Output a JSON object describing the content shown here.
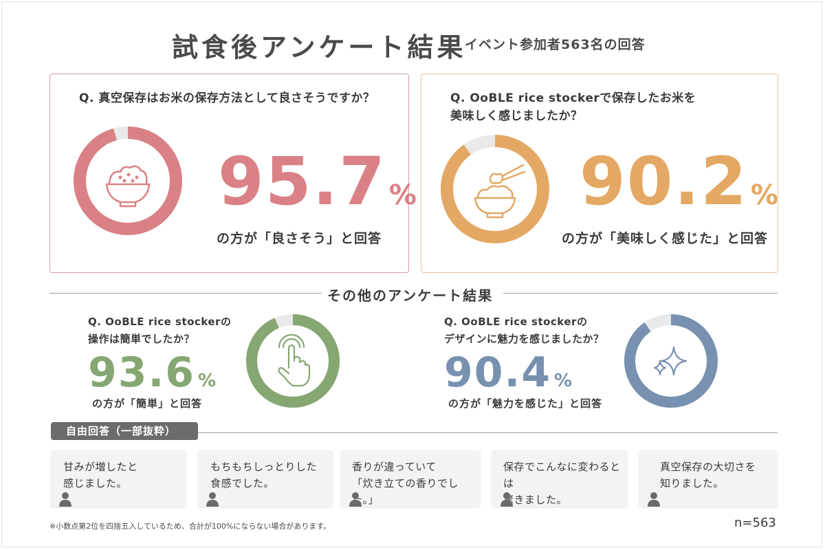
{
  "header": {
    "title": "試食後アンケート結果",
    "subtitle": "イベント参加者563名の回答"
  },
  "main_results": [
    {
      "question": "Q. 真空保存はお米の保存方法として良さそうですか？",
      "value": "95.7",
      "unit": "%",
      "fraction": 0.957,
      "caption": "の方が「良さそう」と回答",
      "color": "#d98186",
      "icon": "rice-bowl-icon"
    },
    {
      "question": "Q. OoBLE rice stockerで保存したお米を\n美味しく感じましたか？",
      "value": "90.2",
      "unit": "%",
      "fraction": 0.902,
      "caption": "の方が「美味しく感じた」と回答",
      "color": "#e3a863",
      "icon": "rice-bowl-chopsticks-icon"
    }
  ],
  "other_section": {
    "title": "その他のアンケート結果"
  },
  "other_results": [
    {
      "question": "Q. OoBLE rice stockerの\n操作は簡単でしたか？",
      "value": "93.6",
      "unit": "%",
      "fraction": 0.936,
      "caption": "の方が「簡単」と回答",
      "color": "#86a672",
      "icon": "tap-hand-icon"
    },
    {
      "question": "Q. OoBLE rice stockerの\nデザインに魅力を感じましたか？",
      "value": "90.4",
      "unit": "%",
      "fraction": 0.904,
      "caption": "の方が「魅力を感じた」と回答",
      "color": "#7891b0",
      "icon": "sparkle-icon"
    }
  ],
  "free_answers": {
    "label": "自由回答（一部抜粋）",
    "items": [
      "甘みが増したと\n感じました。",
      "もちもちしっとりした\n食感でした。",
      "香りが違っていて\n「炊き立ての香りでした。」",
      "保存でこんなに変わるとは\n驚きました。",
      "真空保存の大切さを\n知りました。"
    ]
  },
  "footer": {
    "note": "※小数点第2位を四捨五入しているため、合計が100%にならない場合があります。",
    "n": "n=563"
  },
  "colors": {
    "remainder": "#e9e9e9"
  }
}
